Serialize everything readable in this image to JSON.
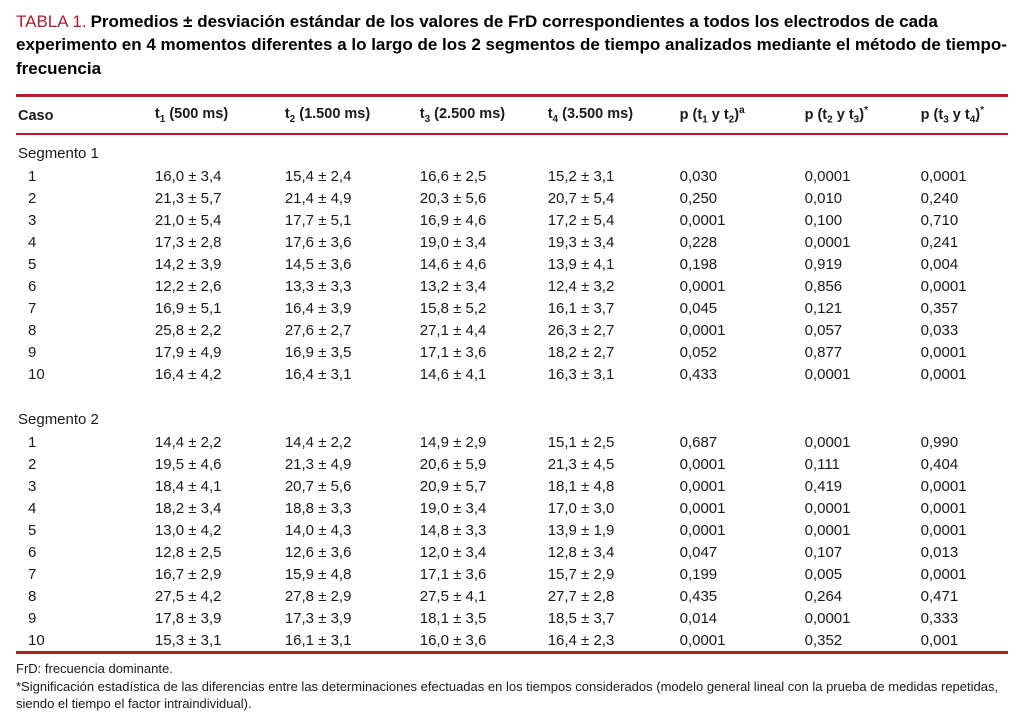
{
  "title": {
    "label": "TABLA 1.",
    "text": "Promedios ± desviación estándar de los valores de FrD correspondientes a todos los electrodos de cada experimento en 4 momentos diferentes a lo largo de los 2 segmentos de tiempo analizados mediante el método de tiempo-frecuencia",
    "accent_color": "#b11a29"
  },
  "table": {
    "columns": [
      {
        "parts": [
          {
            "t": "Caso"
          }
        ]
      },
      {
        "parts": [
          {
            "t": "t"
          },
          {
            "sub": "1"
          },
          {
            "t": " (500 ms)"
          }
        ]
      },
      {
        "parts": [
          {
            "t": "t"
          },
          {
            "sub": "2"
          },
          {
            "t": " (1.500 ms)"
          }
        ]
      },
      {
        "parts": [
          {
            "t": "t"
          },
          {
            "sub": "3"
          },
          {
            "t": " (2.500 ms)"
          }
        ]
      },
      {
        "parts": [
          {
            "t": "t"
          },
          {
            "sub": "4"
          },
          {
            "t": " (3.500 ms)"
          }
        ]
      },
      {
        "parts": [
          {
            "t": "p (t"
          },
          {
            "sub": "1"
          },
          {
            "t": " y t"
          },
          {
            "sub": "2"
          },
          {
            "t": ")"
          },
          {
            "sup": "a"
          }
        ]
      },
      {
        "parts": [
          {
            "t": "p (t"
          },
          {
            "sub": "2"
          },
          {
            "t": " y t"
          },
          {
            "sub": "3"
          },
          {
            "t": ")"
          },
          {
            "sup": "*"
          }
        ]
      },
      {
        "parts": [
          {
            "t": "p (t"
          },
          {
            "sub": "3"
          },
          {
            "t": " y t"
          },
          {
            "sub": "4"
          },
          {
            "t": ")"
          },
          {
            "sup": "*"
          }
        ]
      }
    ],
    "segments": [
      {
        "label": "Segmento 1",
        "rows": [
          [
            "1",
            "16,0 ± 3,4",
            "15,4 ± 2,4",
            "16,6 ± 2,5",
            "15,2 ± 3,1",
            "0,030",
            "0,0001",
            "0,0001"
          ],
          [
            "2",
            "21,3 ± 5,7",
            "21,4 ± 4,9",
            "20,3 ± 5,6",
            "20,7 ± 5,4",
            "0,250",
            "0,010",
            "0,240"
          ],
          [
            "3",
            "21,0 ± 5,4",
            "17,7 ± 5,1",
            "16,9 ± 4,6",
            "17,2 ± 5,4",
            "0,0001",
            "0,100",
            "0,710"
          ],
          [
            "4",
            "17,3 ± 2,8",
            "17,6 ± 3,6",
            "19,0 ± 3,4",
            "19,3 ± 3,4",
            "0,228",
            "0,0001",
            "0,241"
          ],
          [
            "5",
            "14,2 ± 3,9",
            "14,5 ± 3,6",
            "14,6 ± 4,6",
            "13,9 ± 4,1",
            "0,198",
            "0,919",
            "0,004"
          ],
          [
            "6",
            "12,2 ± 2,6",
            "13,3 ± 3,3",
            "13,2 ± 3,4",
            "12,4 ± 3,2",
            "0,0001",
            "0,856",
            "0,0001"
          ],
          [
            "7",
            "16,9 ± 5,1",
            "16,4 ± 3,9",
            "15,8 ± 5,2",
            "16,1 ± 3,7",
            "0,045",
            "0,121",
            "0,357"
          ],
          [
            "8",
            "25,8 ± 2,2",
            "27,6 ± 2,7",
            "27,1 ± 4,4",
            "26,3 ± 2,7",
            "0,0001",
            "0,057",
            "0,033"
          ],
          [
            "9",
            "17,9 ± 4,9",
            "16,9 ± 3,5",
            "17,1 ± 3,6",
            "18,2 ± 2,7",
            "0,052",
            "0,877",
            "0,0001"
          ],
          [
            "10",
            "16,4 ± 4,2",
            "16,4 ± 3,1",
            "14,6 ± 4,1",
            "16,3 ± 3,1",
            "0,433",
            "0,0001",
            "0,0001"
          ]
        ]
      },
      {
        "label": "Segmento 2",
        "rows": [
          [
            "1",
            "14,4 ± 2,2",
            "14,4 ± 2,2",
            "14,9 ± 2,9",
            "15,1 ± 2,5",
            "0,687",
            "0,0001",
            "0,990"
          ],
          [
            "2",
            "19,5 ± 4,6",
            "21,3 ± 4,9",
            "20,6 ± 5,9",
            "21,3 ± 4,5",
            "0,0001",
            "0,111",
            "0,404"
          ],
          [
            "3",
            "18,4 ± 4,1",
            "20,7 ± 5,6",
            "20,9 ± 5,7",
            "18,1 ± 4,8",
            "0,0001",
            "0,419",
            "0,0001"
          ],
          [
            "4",
            "18,2 ± 3,4",
            "18,8 ± 3,3",
            "19,0 ± 3,4",
            "17,0 ± 3,0",
            "0,0001",
            "0,0001",
            "0,0001"
          ],
          [
            "5",
            "13,0 ± 4,2",
            "14,0 ± 4,3",
            "14,8 ± 3,3",
            "13,9 ± 1,9",
            "0,0001",
            "0,0001",
            "0,0001"
          ],
          [
            "6",
            "12,8 ± 2,5",
            "12,6 ± 3,6",
            "12,0 ± 3,4",
            "12,8 ± 3,4",
            "0,047",
            "0,107",
            "0,013"
          ],
          [
            "7",
            "16,7 ± 2,9",
            "15,9 ± 4,8",
            "17,1 ± 3,6",
            "15,7 ± 2,9",
            "0,199",
            "0,005",
            "0,0001"
          ],
          [
            "8",
            "27,5 ± 4,2",
            "27,8 ± 2,9",
            "27,5 ± 4,1",
            "27,7 ± 2,8",
            "0,435",
            "0,264",
            "0,471"
          ],
          [
            "9",
            "17,8 ± 3,9",
            "17,3 ± 3,9",
            "18,1 ± 3,5",
            "18,5 ± 3,7",
            "0,014",
            "0,0001",
            "0,333"
          ],
          [
            "10",
            "15,3 ± 3,1",
            "16,1 ± 3,1",
            "16,0 ± 3,6",
            "16,4 ± 2,3",
            "0,0001",
            "0,352",
            "0,001"
          ]
        ]
      }
    ]
  },
  "footnotes": [
    "FrD: frecuencia dominante.",
    "*Significación estadística de las diferencias entre las determinaciones efectuadas en los tiempos considerados (modelo general lineal con la prueba de medidas repetidas, siendo el tiempo el factor intraindividual)."
  ]
}
